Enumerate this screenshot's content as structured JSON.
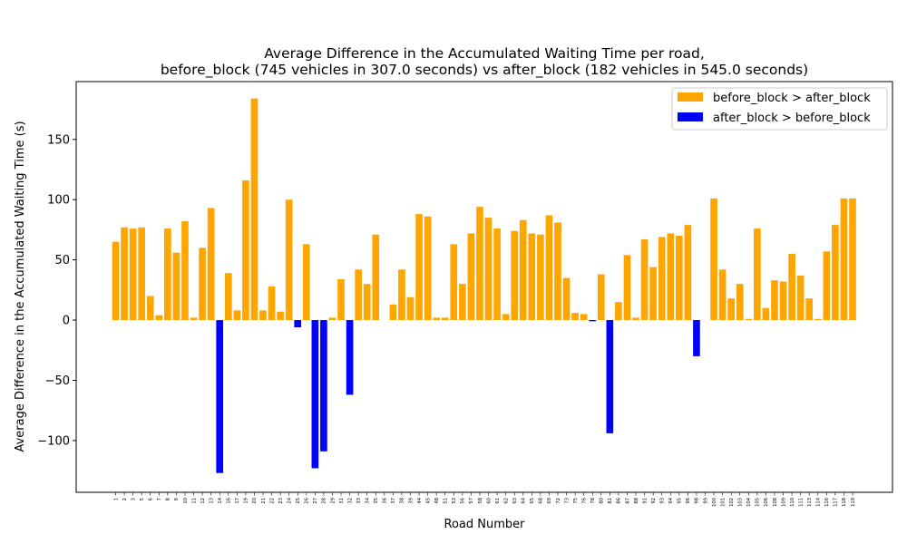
{
  "chart_data": {
    "type": "bar",
    "title_line1": "Average Difference in the Accumulated Waiting Time per road,",
    "title_line2": "before_block (745 vehicles in 307.0 seconds) vs after_block (182 vehicles in 545.0 seconds)",
    "xlabel": "Road Number",
    "ylabel": "Average Difference in the Accumulated Waiting Time (s)",
    "ylim": [
      -143,
      198
    ],
    "yticks": [
      -100,
      -50,
      0,
      50,
      100,
      150
    ],
    "grid": false,
    "legend_position": "top-right",
    "legend": [
      {
        "label": "before_block > after_block",
        "color": "#ffa500"
      },
      {
        "label": "after_block > before_block",
        "color": "#0000ff"
      }
    ],
    "colors": {
      "positive": "#ffa500",
      "negative": "#0000ff"
    },
    "categories": [
      "1",
      "2",
      "3",
      "5",
      "6",
      "7",
      "8",
      "9",
      "10",
      "11",
      "12",
      "13",
      "14",
      "16",
      "17",
      "19",
      "20",
      "21",
      "22",
      "23",
      "24",
      "25",
      "26",
      "27",
      "28",
      "29",
      "31",
      "32",
      "33",
      "34",
      "35",
      "36",
      "37",
      "38",
      "39",
      "44",
      "45",
      "48",
      "51",
      "53",
      "56",
      "57",
      "58",
      "60",
      "61",
      "62",
      "63",
      "64",
      "65",
      "68",
      "69",
      "72",
      "73",
      "75",
      "76",
      "78",
      "80",
      "81",
      "86",
      "87",
      "88",
      "91",
      "92",
      "93",
      "94",
      "95",
      "96",
      "98",
      "99",
      "100",
      "101",
      "102",
      "103",
      "104",
      "105",
      "106",
      "108",
      "109",
      "110",
      "111",
      "113",
      "114",
      "116",
      "117",
      "118",
      "119"
    ],
    "values": [
      65,
      77,
      76,
      77,
      20,
      4,
      76,
      56,
      82,
      2,
      60,
      93,
      -127,
      39,
      8,
      116,
      184,
      8,
      28,
      7,
      100,
      -6,
      63,
      -123,
      -109,
      2,
      34,
      -62,
      42,
      30,
      71,
      0,
      13,
      42,
      19,
      88,
      86,
      2,
      2,
      63,
      30,
      72,
      94,
      85,
      76,
      5,
      74,
      83,
      72,
      71,
      87,
      81,
      35,
      6,
      5,
      -1,
      38,
      -94,
      15,
      54,
      2,
      67,
      44,
      69,
      72,
      70,
      79,
      -30,
      0,
      101,
      42,
      18,
      30,
      1,
      76,
      10,
      33,
      32,
      55,
      37,
      18,
      1,
      57,
      79,
      101,
      101
    ]
  }
}
